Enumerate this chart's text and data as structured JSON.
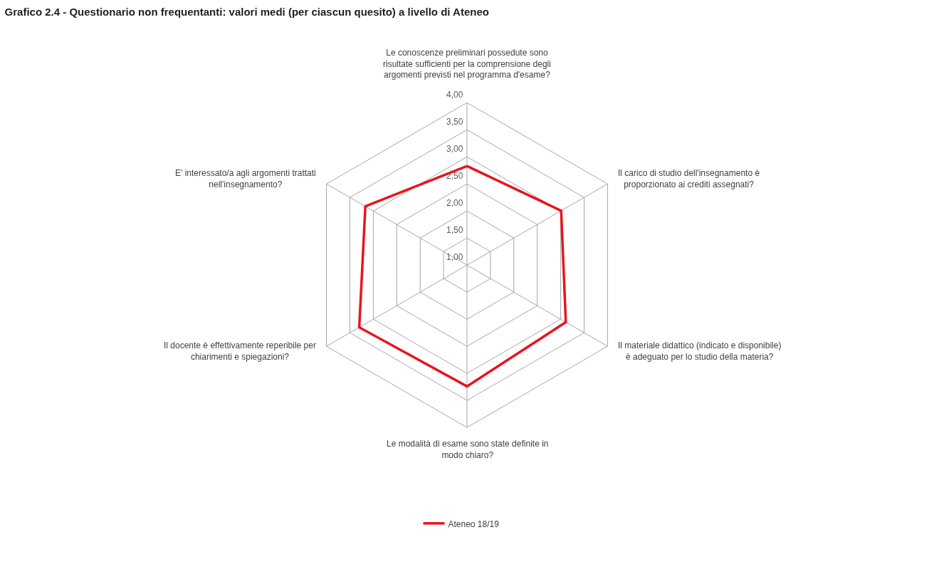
{
  "chart_data": {
    "type": "radar",
    "title": "Grafico 2.4 - Questionario non frequentanti: valori medi (per ciascun quesito) a livello di Ateneo",
    "categories": [
      "Le conoscenze preliminari possedute sono risultate sufficienti per la comprensione degli argomenti previsti nel programma d'esame?",
      "Il carico di studio dell'insegnamento è proporzionato ai crediti assegnati?",
      "Il materiale didattico (indicato e disponibile) è adeguato per lo studio della materia?",
      "Le modalità di esame sono state definite in modo chiaro?",
      "Il docente è effettivamente reperibile per chiarimenti e spiegazioni?",
      "E' interessato/a agli argomenti trattati nell'insegnamento?"
    ],
    "series": [
      {
        "name": "Ateneo 18/19",
        "color": "#e8141c",
        "values": [
          2.83,
          3.01,
          3.11,
          3.24,
          3.3,
          3.17
        ]
      }
    ],
    "ylim": [
      1,
      4
    ],
    "yticks": [
      {
        "value": 1,
        "label": "1,00"
      },
      {
        "value": 1.5,
        "label": "1,50"
      },
      {
        "value": 2,
        "label": "2,00"
      },
      {
        "value": 2.5,
        "label": "2,50"
      },
      {
        "value": 3,
        "label": "3,00"
      },
      {
        "value": 3.5,
        "label": "3,50"
      },
      {
        "value": 4,
        "label": "4,00"
      }
    ],
    "grid": true,
    "legend": "bottom",
    "marker": "none",
    "line_style": "solid"
  }
}
